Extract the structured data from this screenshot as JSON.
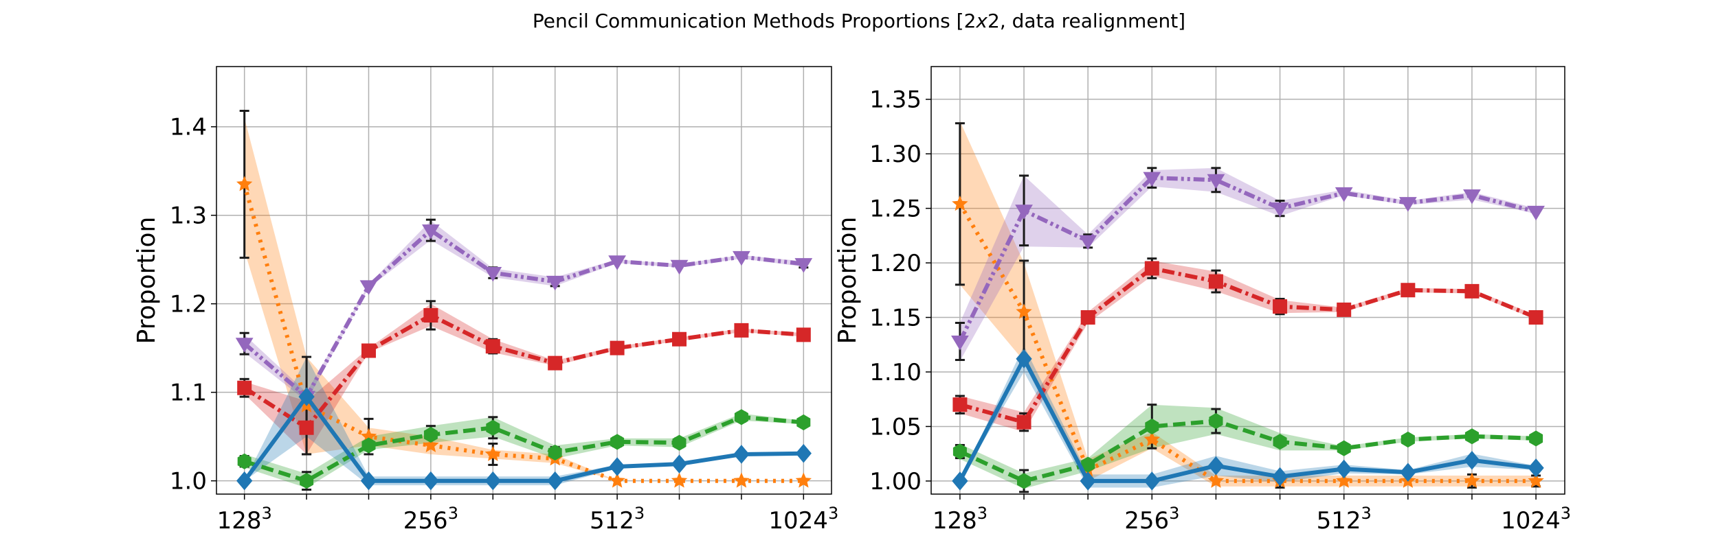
{
  "figure": {
    "title_main": "Pencil Communication Methods Proportions [2",
    "title_x": "x",
    "title_end": "2, data realignment]"
  },
  "chart_data": [
    {
      "type": "line",
      "ylabel": "Proportion",
      "xlabel": "",
      "x": [
        0,
        1,
        2,
        3,
        4,
        5,
        6,
        7,
        8,
        9
      ],
      "xticks": [
        {
          "pos": 0,
          "base": "128",
          "exp": "3"
        },
        {
          "pos": 3,
          "base": "256",
          "exp": "3"
        },
        {
          "pos": 6,
          "base": "512",
          "exp": "3"
        },
        {
          "pos": 9,
          "base": "1024",
          "exp": "3"
        }
      ],
      "xlim": [
        -0.45,
        9.45
      ],
      "ylim": [
        0.985,
        1.468
      ],
      "yticks": [
        "1.0",
        "1.1",
        "1.2",
        "1.3",
        "1.4"
      ],
      "ytick_values": [
        1.0,
        1.1,
        1.2,
        1.3,
        1.4
      ],
      "grid": true,
      "series": [
        {
          "color": "#ff7f0e",
          "dash": "dotted",
          "marker": "star",
          "values": [
            1.335,
            1.085,
            1.05,
            1.04,
            1.03,
            1.025,
            1.0,
            1.0,
            1.0,
            1.0
          ],
          "band_low": [
            1.26,
            1.03,
            1.04,
            1.03,
            1.025,
            1.02,
            1.0,
            1.0,
            1.0,
            1.0
          ],
          "band_high": [
            1.41,
            1.14,
            1.06,
            1.05,
            1.035,
            1.03,
            1.0,
            1.0,
            1.0,
            1.0
          ],
          "err": [
            0.083,
            0.055,
            0.02,
            0.0,
            0.012,
            0.0,
            0.0,
            0.0,
            0.0,
            0.0
          ]
        },
        {
          "color": "#9467bd",
          "dash": "dashdotdot",
          "marker": "triangle-down",
          "values": [
            1.155,
            1.095,
            1.22,
            1.283,
            1.235,
            1.225,
            1.248,
            1.243,
            1.253,
            1.245
          ],
          "band_low": [
            1.145,
            1.09,
            1.218,
            1.272,
            1.23,
            1.22,
            1.246,
            1.241,
            1.251,
            1.242
          ],
          "band_high": [
            1.165,
            1.1,
            1.222,
            1.294,
            1.24,
            1.23,
            1.25,
            1.245,
            1.255,
            1.248
          ],
          "err": [
            0.012,
            0.006,
            0.0,
            0.012,
            0.006,
            0.005,
            0.0,
            0.0,
            0.0,
            0.004
          ]
        },
        {
          "color": "#d62728",
          "dash": "dashdot",
          "marker": "square",
          "values": [
            1.105,
            1.06,
            1.147,
            1.187,
            1.152,
            1.133,
            1.15,
            1.16,
            1.17,
            1.165
          ],
          "band_low": [
            1.098,
            1.03,
            1.145,
            1.175,
            1.145,
            1.13,
            1.148,
            1.158,
            1.168,
            1.163
          ],
          "band_high": [
            1.112,
            1.09,
            1.15,
            1.2,
            1.16,
            1.136,
            1.152,
            1.162,
            1.172,
            1.167
          ],
          "err": [
            0.01,
            0.03,
            0.0,
            0.016,
            0.008,
            0.0,
            0.0,
            0.0,
            0.0,
            0.0
          ]
        },
        {
          "color": "#2ca02c",
          "dash": "dashed",
          "marker": "hexagon",
          "values": [
            1.022,
            1.0,
            1.04,
            1.052,
            1.06,
            1.032,
            1.044,
            1.043,
            1.072,
            1.066
          ],
          "band_low": [
            1.015,
            0.992,
            1.035,
            1.043,
            1.05,
            1.025,
            1.04,
            1.038,
            1.068,
            1.064
          ],
          "band_high": [
            1.03,
            1.008,
            1.05,
            1.062,
            1.072,
            1.04,
            1.048,
            1.048,
            1.076,
            1.068
          ],
          "err": [
            0.006,
            0.01,
            0.0,
            0.01,
            0.012,
            0.006,
            0.005,
            0.005,
            0.005,
            0.0
          ]
        },
        {
          "color": "#1f77b4",
          "dash": "solid",
          "marker": "diamond",
          "values": [
            1.0,
            1.095,
            1.0,
            1.0,
            1.0,
            1.0,
            1.016,
            1.019,
            1.03,
            1.031
          ],
          "band_low": [
            1.0,
            1.05,
            0.995,
            0.995,
            0.995,
            0.995,
            1.014,
            1.017,
            1.028,
            1.029
          ],
          "band_high": [
            1.0,
            1.14,
            1.005,
            1.005,
            1.005,
            1.005,
            1.018,
            1.021,
            1.032,
            1.033
          ],
          "err": [
            0.0,
            0.0,
            0.0,
            0.0,
            0.0,
            0.0,
            0.0,
            0.0,
            0.0,
            0.0
          ]
        }
      ]
    },
    {
      "type": "line",
      "ylabel": "Proportion",
      "xlabel": "",
      "x": [
        0,
        1,
        2,
        3,
        4,
        5,
        6,
        7,
        8,
        9
      ],
      "xticks": [
        {
          "pos": 0,
          "base": "128",
          "exp": "3"
        },
        {
          "pos": 3,
          "base": "256",
          "exp": "3"
        },
        {
          "pos": 6,
          "base": "512",
          "exp": "3"
        },
        {
          "pos": 9,
          "base": "1024",
          "exp": "3"
        }
      ],
      "xlim": [
        -0.45,
        9.45
      ],
      "ylim": [
        0.988,
        1.38
      ],
      "yticks": [
        "1.00",
        "1.05",
        "1.10",
        "1.15",
        "1.20",
        "1.25",
        "1.30",
        "1.35"
      ],
      "ytick_values": [
        1.0,
        1.05,
        1.1,
        1.15,
        1.2,
        1.25,
        1.3,
        1.35
      ],
      "grid": true,
      "series": [
        {
          "color": "#ff7f0e",
          "dash": "dotted",
          "marker": "star",
          "values": [
            1.254,
            1.155,
            1.01,
            1.038,
            1.0,
            1.0,
            1.0,
            1.0,
            1.0,
            1.0
          ],
          "band_low": [
            1.18,
            1.11,
            1.0,
            1.03,
            0.995,
            0.995,
            0.995,
            0.995,
            0.995,
            0.995
          ],
          "band_high": [
            1.33,
            1.2,
            1.02,
            1.045,
            1.005,
            1.005,
            1.005,
            1.005,
            1.005,
            1.005
          ],
          "err": [
            0.074,
            0.047,
            0.0,
            0.0,
            0.0,
            0.006,
            0.0,
            0.0,
            0.006,
            0.005
          ]
        },
        {
          "color": "#9467bd",
          "dash": "dashdotdot",
          "marker": "triangle-down",
          "values": [
            1.128,
            1.248,
            1.22,
            1.278,
            1.276,
            1.25,
            1.264,
            1.255,
            1.262,
            1.247
          ],
          "band_low": [
            1.11,
            1.215,
            1.214,
            1.27,
            1.265,
            1.243,
            1.262,
            1.253,
            1.258,
            1.245
          ],
          "band_high": [
            1.145,
            1.28,
            1.226,
            1.285,
            1.287,
            1.257,
            1.267,
            1.257,
            1.265,
            1.25
          ],
          "err": [
            0.017,
            0.032,
            0.006,
            0.009,
            0.011,
            0.007,
            0.0,
            0.0,
            0.0,
            0.0
          ]
        },
        {
          "color": "#d62728",
          "dash": "dashdot",
          "marker": "square",
          "values": [
            1.07,
            1.054,
            1.15,
            1.195,
            1.183,
            1.16,
            1.157,
            1.175,
            1.174,
            1.15
          ],
          "band_low": [
            1.062,
            1.045,
            1.145,
            1.188,
            1.174,
            1.154,
            1.155,
            1.173,
            1.172,
            1.148
          ],
          "band_high": [
            1.078,
            1.063,
            1.155,
            1.202,
            1.192,
            1.166,
            1.159,
            1.177,
            1.176,
            1.152
          ],
          "err": [
            0.008,
            0.008,
            0.005,
            0.009,
            0.01,
            0.007,
            0.0,
            0.0,
            0.0,
            0.0
          ]
        },
        {
          "color": "#2ca02c",
          "dash": "dashed",
          "marker": "hexagon",
          "values": [
            1.027,
            1.0,
            1.015,
            1.05,
            1.055,
            1.036,
            1.03,
            1.038,
            1.041,
            1.039
          ],
          "band_low": [
            1.02,
            0.993,
            1.009,
            1.03,
            1.043,
            1.028,
            1.028,
            1.036,
            1.039,
            1.037
          ],
          "band_high": [
            1.034,
            1.007,
            1.021,
            1.07,
            1.067,
            1.044,
            1.032,
            1.04,
            1.043,
            1.041
          ],
          "err": [
            0.006,
            0.01,
            0.0,
            0.02,
            0.011,
            0.0,
            0.0,
            0.0,
            0.0,
            0.0
          ]
        },
        {
          "color": "#1f77b4",
          "dash": "solid",
          "marker": "diamond",
          "values": [
            1.0,
            1.112,
            1.0,
            1.0,
            1.014,
            1.004,
            1.011,
            1.008,
            1.019,
            1.012
          ],
          "band_low": [
            1.0,
            1.1,
            0.994,
            0.994,
            1.005,
            0.999,
            1.007,
            1.006,
            1.013,
            1.01
          ],
          "band_high": [
            1.0,
            1.124,
            1.006,
            1.006,
            1.023,
            1.009,
            1.015,
            1.01,
            1.025,
            1.014
          ],
          "err": [
            0.0,
            0.0,
            0.0,
            0.0,
            0.0,
            0.0,
            0.0,
            0.0,
            0.0,
            0.0
          ]
        }
      ]
    }
  ]
}
